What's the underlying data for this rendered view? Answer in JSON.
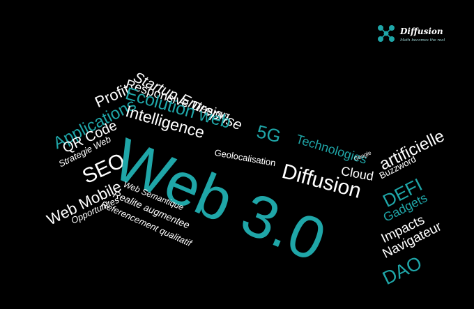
{
  "brand": {
    "name": "Diffusion",
    "tagline": "Math becomes the real",
    "accent": "#1fa6a8"
  },
  "words": {
    "startup": "Startup Entreprise",
    "profit": "Profit",
    "responsive": "Responsive Design",
    "applications": "Applications",
    "ecolution": "Ecolution web",
    "qr": "QR Code",
    "strategie": "Strategie Web",
    "intelligence": "Intelligence",
    "fiveg": "5G",
    "technologies": "Technologies",
    "google": "Google",
    "artificielle": "artificielle",
    "buzzword": "Buzzword",
    "seo": "SEO",
    "geoloc": "Geolocalisation",
    "cloud": "Cloud",
    "web30": "Web 3.0",
    "diffusion": "Diffusion",
    "defi": "DEFI",
    "webmobile": "Web Mobile",
    "opportunites": "Opportunites",
    "semantique": "Web Semantique",
    "realite": "Realite augmentee",
    "referencement": "Referencement qualitatif",
    "gadgets": "Gadgets",
    "impacts": "Impacts",
    "navigateur": "Navigateur",
    "dao": "DAO"
  }
}
